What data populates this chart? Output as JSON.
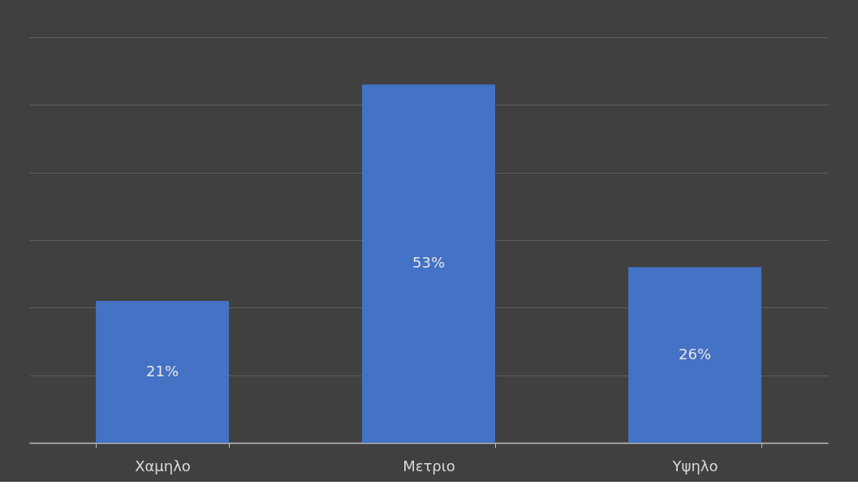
{
  "chart_data": {
    "type": "bar",
    "categories": [
      "Χαμηλο",
      "Μετριο",
      "Υψηλο"
    ],
    "values": [
      21,
      53,
      26
    ],
    "value_labels": [
      "21%",
      "53%",
      "26%"
    ],
    "color": "#4472c4",
    "ylim": [
      0,
      60
    ],
    "yticks": [
      {
        "value": 0,
        "label": null
      },
      {
        "value": 10,
        "label": null
      },
      {
        "value": 20,
        "label": null
      },
      {
        "value": 30,
        "label": null
      },
      {
        "value": 40,
        "label": null
      },
      {
        "value": 50,
        "label": null
      },
      {
        "value": 60,
        "label": null
      }
    ],
    "grid": "y",
    "tick_labels": "x"
  }
}
